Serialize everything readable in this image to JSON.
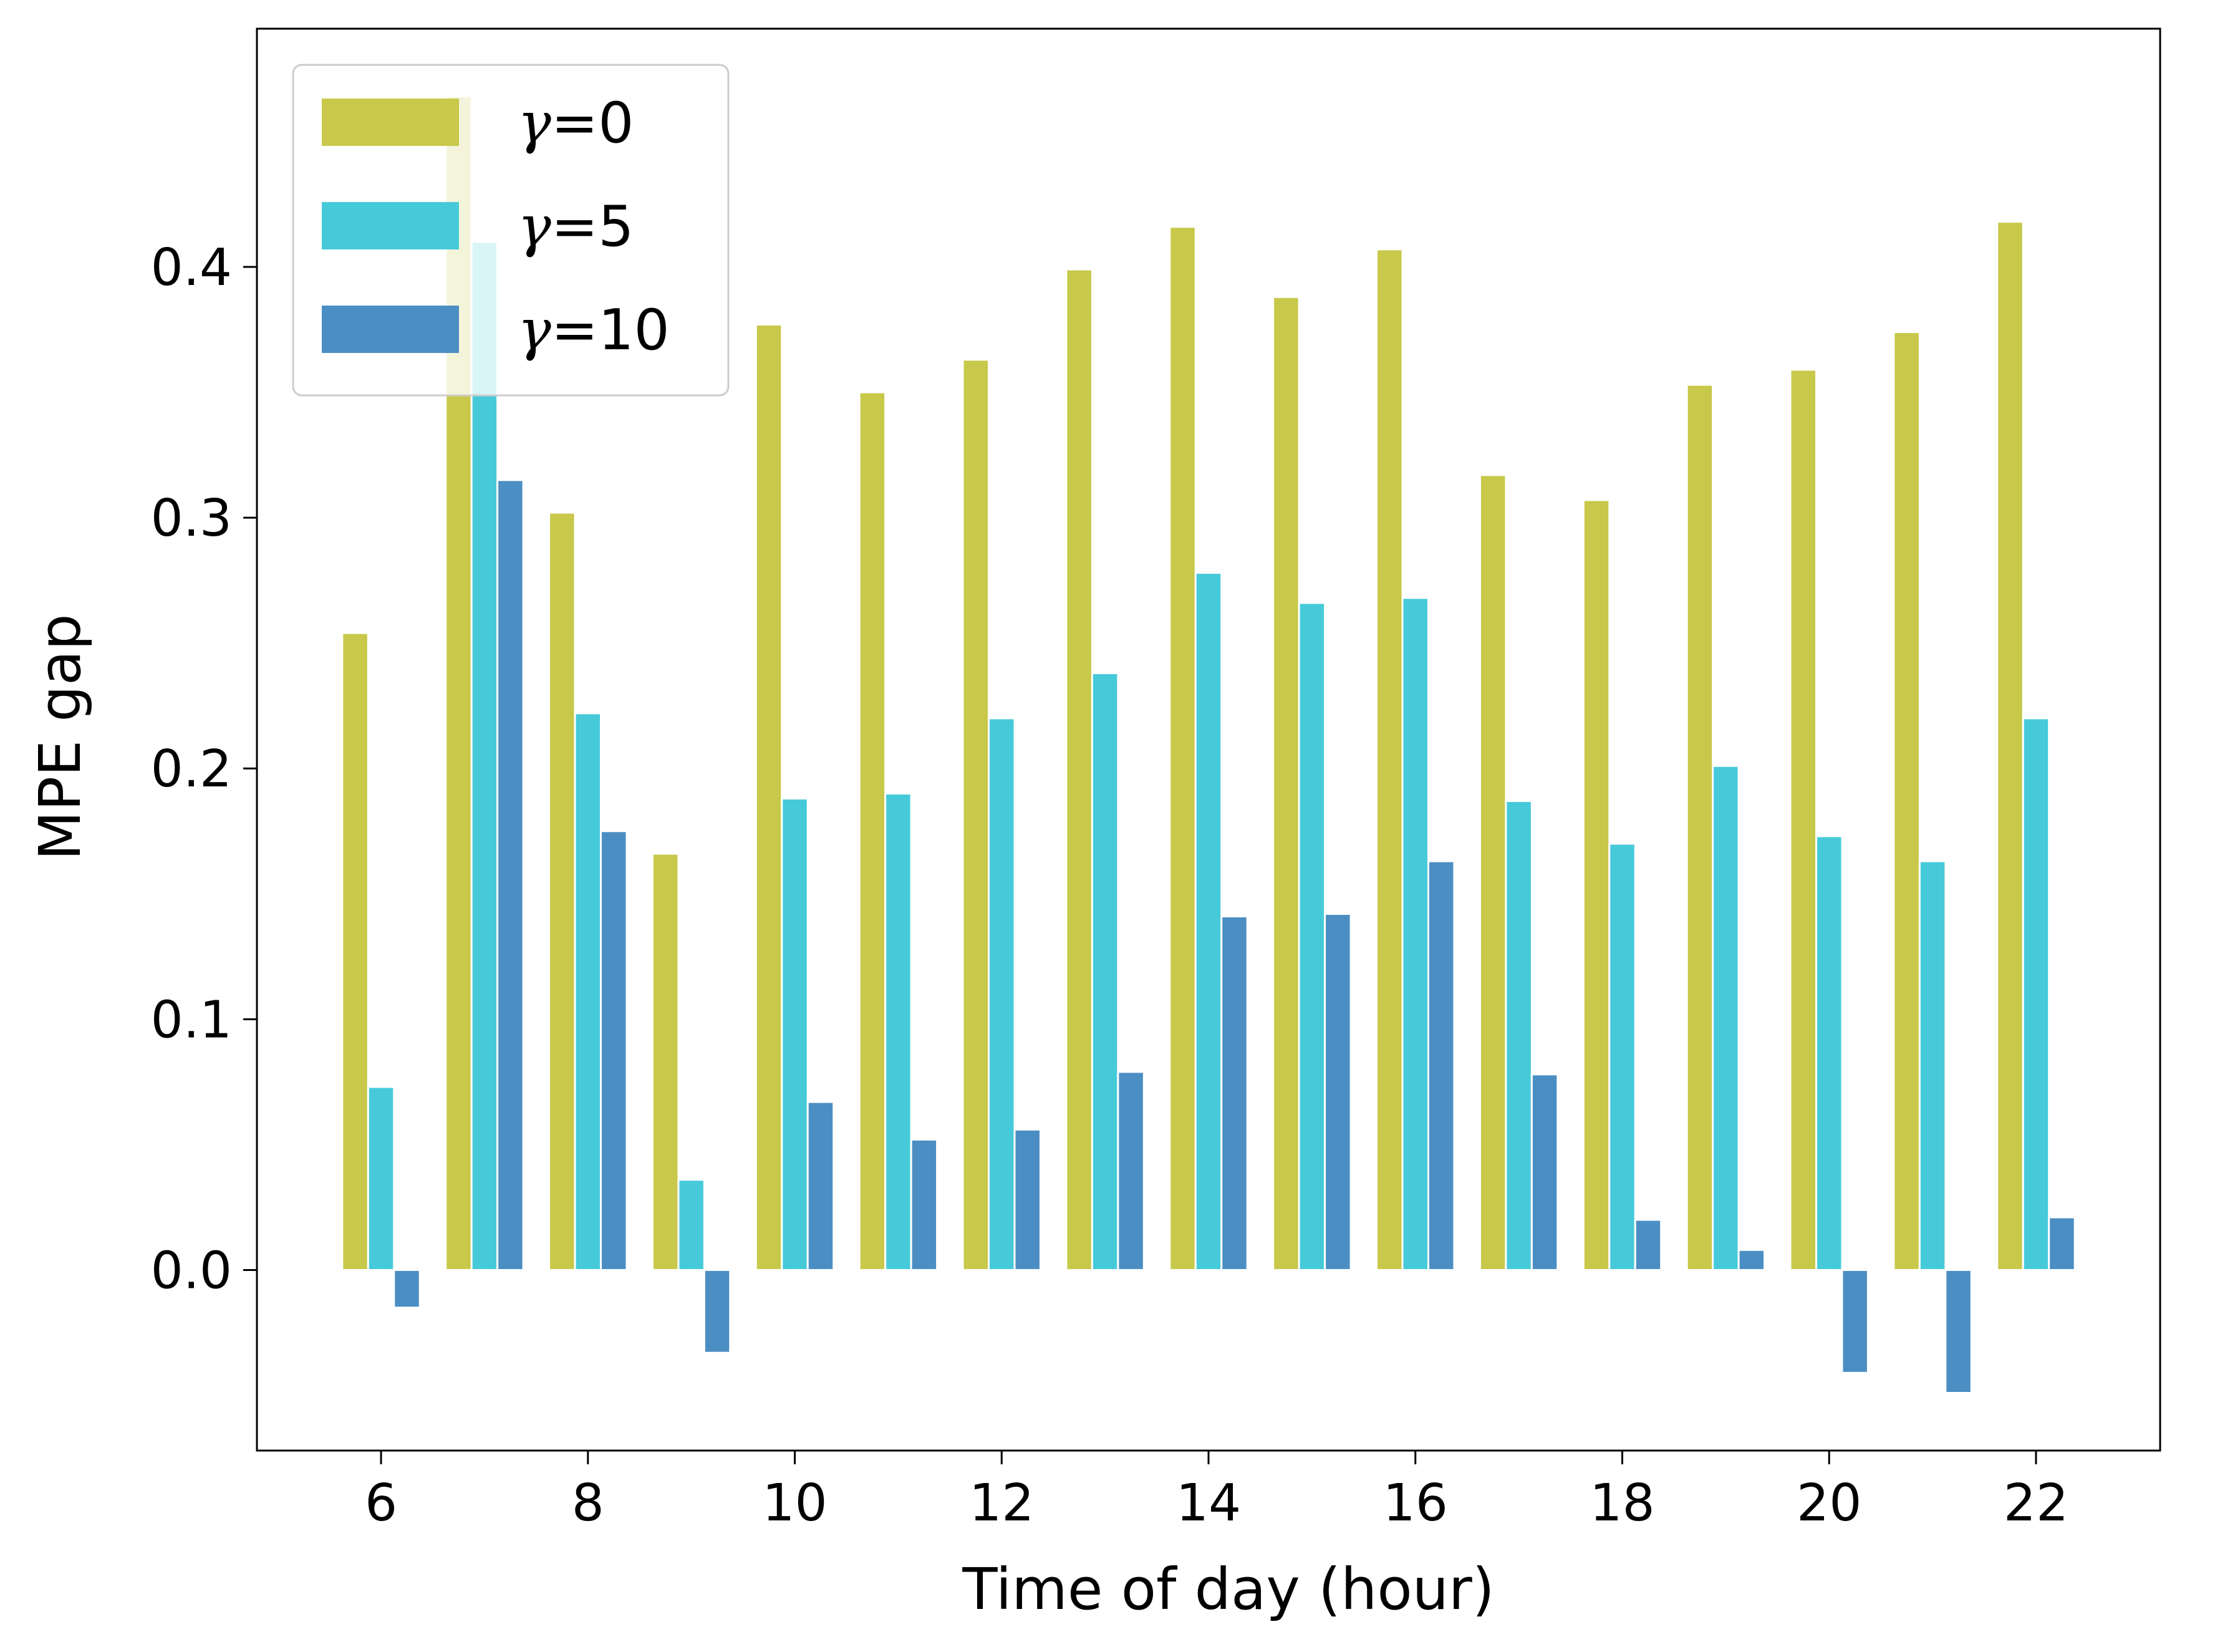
{
  "chart_data": {
    "type": "bar",
    "xlabel": "Time of day (hour)",
    "ylabel": "MPE gap",
    "x": [
      6,
      7,
      8,
      9,
      10,
      11,
      12,
      13,
      14,
      15,
      16,
      17,
      18,
      19,
      20,
      21,
      22
    ],
    "xticks": [
      "6",
      "8",
      "10",
      "12",
      "14",
      "16",
      "18",
      "20",
      "22"
    ],
    "yticks": [
      "0.0",
      "0.1",
      "0.2",
      "0.3",
      "0.4"
    ],
    "ylim": [
      -0.072,
      0.495
    ],
    "xlim": [
      4.8,
      23.2
    ],
    "grid": false,
    "legend_position": "top-left",
    "series": [
      {
        "name": "γ=0",
        "symbol": "γ",
        "value_text": "=0",
        "color": "#c8c84a",
        "values": [
          0.254,
          0.468,
          0.302,
          0.166,
          0.377,
          0.35,
          0.363,
          0.399,
          0.416,
          0.388,
          0.407,
          0.317,
          0.307,
          0.353,
          0.359,
          0.374,
          0.418
        ]
      },
      {
        "name": "γ=5",
        "symbol": "γ",
        "value_text": "=5",
        "color": "#46cad9",
        "values": [
          0.073,
          0.41,
          0.222,
          0.036,
          0.188,
          0.19,
          0.22,
          0.238,
          0.278,
          0.266,
          0.268,
          0.187,
          0.17,
          0.201,
          0.173,
          0.163,
          0.22
        ]
      },
      {
        "name": "γ=10",
        "symbol": "γ",
        "value_text": "=10",
        "color": "#4b8ec3",
        "values": [
          -0.015,
          0.315,
          0.175,
          -0.033,
          0.067,
          0.052,
          0.056,
          0.079,
          0.141,
          0.142,
          0.163,
          0.078,
          0.02,
          0.008,
          -0.041,
          -0.049,
          0.021
        ]
      }
    ]
  }
}
